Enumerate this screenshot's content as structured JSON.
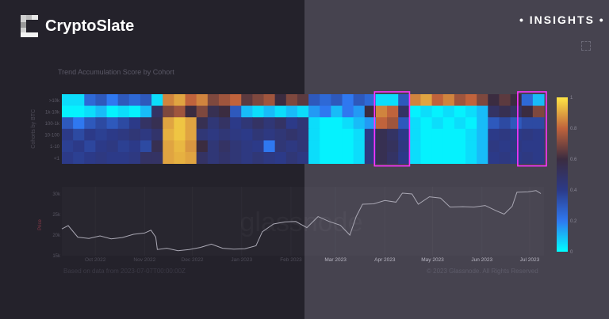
{
  "header": {
    "brand": "CryptoSlate",
    "badge": "• INSIGHTS •",
    "expand_icon": "expand-icon"
  },
  "footer": {
    "source": "Based on data from 2023-07-07T00:00:00Z",
    "copyright": "© 2023 Glassnode. All Rights Reserved"
  },
  "watermark": "glassnode",
  "chart_data": [
    {
      "type": "heatmap",
      "title": "Trend Accumulation Score by Cohort",
      "ylabel": "Cohorts by BTC",
      "rows": [
        ">10k",
        "1k-10k",
        "100-1k",
        "10-100",
        "1-10",
        "<1"
      ],
      "x_start": "2022-09-10",
      "x_end": "2023-07-10",
      "x_step": "weekly",
      "colorbar": {
        "range": [
          0,
          1
        ],
        "ticks": [
          "0",
          "0.2",
          "0.4",
          "0.6",
          "0.8",
          "1"
        ],
        "colors": [
          "#00ffff",
          "#2f78f0",
          "#2c3a88",
          "#3b2c40",
          "#c0633c",
          "#ffe545"
        ]
      },
      "highlight_color": "#ff33ff",
      "highlights": [
        [
          "2023-03-27",
          "2023-04-15"
        ],
        [
          "2023-06-25",
          "2023-07-10"
        ]
      ],
      "values": [
        [
          0.05,
          0.05,
          0.25,
          0.3,
          0.2,
          0.3,
          0.25,
          0.3,
          0.05,
          0.85,
          0.9,
          0.8,
          0.85,
          0.7,
          0.75,
          0.8,
          0.65,
          0.7,
          0.75,
          0.6,
          0.7,
          0.65,
          0.3,
          0.25,
          0.3,
          0.2,
          0.3,
          0.25,
          0.05,
          0.05,
          0.3,
          0.85,
          0.9,
          0.8,
          0.85,
          0.75,
          0.8,
          0.7,
          0.6,
          0.65,
          0.6,
          0.25,
          0.1
        ],
        [
          0.02,
          0.02,
          0.05,
          0.1,
          0.02,
          0.05,
          0.02,
          0.1,
          0.5,
          0.7,
          0.75,
          0.6,
          0.7,
          0.55,
          0.6,
          0.3,
          0.1,
          0.05,
          0.1,
          0.05,
          0.1,
          0.05,
          0.15,
          0.2,
          0.1,
          0.2,
          0.15,
          0.6,
          0.85,
          0.8,
          0.5,
          0.02,
          0.05,
          0.02,
          0.05,
          0.02,
          0.05,
          0.1,
          0.5,
          0.55,
          0.5,
          0.6,
          0.7
        ],
        [
          0.3,
          0.2,
          0.3,
          0.35,
          0.3,
          0.35,
          0.4,
          0.5,
          0.55,
          0.9,
          0.95,
          0.9,
          0.55,
          0.45,
          0.5,
          0.4,
          0.45,
          0.5,
          0.45,
          0.5,
          0.4,
          0.45,
          0.05,
          0.02,
          0.02,
          0.05,
          0.1,
          0.15,
          0.8,
          0.75,
          0.3,
          0.05,
          0.02,
          0.05,
          0.02,
          0.05,
          0.02,
          0.1,
          0.3,
          0.35,
          0.3,
          0.35,
          0.35
        ],
        [
          0.4,
          0.35,
          0.4,
          0.38,
          0.4,
          0.42,
          0.45,
          0.42,
          0.48,
          0.92,
          0.95,
          0.9,
          0.45,
          0.42,
          0.45,
          0.42,
          0.4,
          0.45,
          0.42,
          0.45,
          0.48,
          0.45,
          0.05,
          0.02,
          0.02,
          0.02,
          0.05,
          0.4,
          0.55,
          0.5,
          0.4,
          0.05,
          0.02,
          0.02,
          0.02,
          0.02,
          0.05,
          0.1,
          0.4,
          0.42,
          0.4,
          0.42,
          0.4
        ],
        [
          0.38,
          0.4,
          0.36,
          0.4,
          0.42,
          0.38,
          0.4,
          0.35,
          0.55,
          0.9,
          0.93,
          0.88,
          0.6,
          0.45,
          0.5,
          0.45,
          0.42,
          0.4,
          0.2,
          0.45,
          0.42,
          0.45,
          0.05,
          0.02,
          0.02,
          0.02,
          0.05,
          0.42,
          0.55,
          0.52,
          0.42,
          0.05,
          0.02,
          0.02,
          0.02,
          0.02,
          0.05,
          0.1,
          0.42,
          0.4,
          0.42,
          0.4,
          0.4
        ],
        [
          0.4,
          0.38,
          0.4,
          0.42,
          0.4,
          0.4,
          0.42,
          0.5,
          0.5,
          0.9,
          0.92,
          0.9,
          0.5,
          0.45,
          0.48,
          0.45,
          0.42,
          0.45,
          0.42,
          0.4,
          0.45,
          0.42,
          0.05,
          0.02,
          0.02,
          0.02,
          0.05,
          0.42,
          0.55,
          0.5,
          0.4,
          0.05,
          0.02,
          0.02,
          0.02,
          0.02,
          0.05,
          0.1,
          0.4,
          0.42,
          0.4,
          0.42,
          0.4
        ]
      ]
    },
    {
      "type": "line",
      "ylabel": "Price",
      "yticks": [
        "15k",
        "20k",
        "25k",
        "30k"
      ],
      "ylim": [
        15000,
        30000
      ],
      "xticks": [
        [
          "2022-10-01",
          "Oct 2022"
        ],
        [
          "2022-11-01",
          "Nov 2022"
        ],
        [
          "2022-12-01",
          "Dec 2022"
        ],
        [
          "2023-01-01",
          "Jan 2023"
        ],
        [
          "2023-02-01",
          "Feb 2023"
        ],
        [
          "2023-03-01",
          "Mar 2023"
        ],
        [
          "2023-04-01",
          "Apr 2023"
        ],
        [
          "2023-05-01",
          "May 2023"
        ],
        [
          "2023-06-01",
          "Jun 2023"
        ],
        [
          "2023-07-01",
          "Jul 2023"
        ]
      ],
      "line_color": "#a9a7b3",
      "points": [
        [
          "2022-09-10",
          21500
        ],
        [
          "2022-09-14",
          22300
        ],
        [
          "2022-09-20",
          19500
        ],
        [
          "2022-09-27",
          19200
        ],
        [
          "2022-10-04",
          19800
        ],
        [
          "2022-10-11",
          19100
        ],
        [
          "2022-10-18",
          19400
        ],
        [
          "2022-10-25",
          20200
        ],
        [
          "2022-11-01",
          20500
        ],
        [
          "2022-11-05",
          21200
        ],
        [
          "2022-11-08",
          19500
        ],
        [
          "2022-11-09",
          16500
        ],
        [
          "2022-11-15",
          16800
        ],
        [
          "2022-11-22",
          16200
        ],
        [
          "2022-11-29",
          16500
        ],
        [
          "2022-12-06",
          17000
        ],
        [
          "2022-12-13",
          17800
        ],
        [
          "2022-12-20",
          16800
        ],
        [
          "2022-12-27",
          16600
        ],
        [
          "2023-01-03",
          16700
        ],
        [
          "2023-01-10",
          17400
        ],
        [
          "2023-01-14",
          20800
        ],
        [
          "2023-01-21",
          22700
        ],
        [
          "2023-01-28",
          23200
        ],
        [
          "2023-02-04",
          23300
        ],
        [
          "2023-02-11",
          21800
        ],
        [
          "2023-02-18",
          24500
        ],
        [
          "2023-02-25",
          23300
        ],
        [
          "2023-03-04",
          22400
        ],
        [
          "2023-03-10",
          20000
        ],
        [
          "2023-03-14",
          24500
        ],
        [
          "2023-03-18",
          27500
        ],
        [
          "2023-03-25",
          27600
        ],
        [
          "2023-04-01",
          28400
        ],
        [
          "2023-04-08",
          28000
        ],
        [
          "2023-04-12",
          30200
        ],
        [
          "2023-04-18",
          30000
        ],
        [
          "2023-04-22",
          27500
        ],
        [
          "2023-04-29",
          29300
        ],
        [
          "2023-05-06",
          29000
        ],
        [
          "2023-05-12",
          26800
        ],
        [
          "2023-05-20",
          26900
        ],
        [
          "2023-05-27",
          26800
        ],
        [
          "2023-06-03",
          27200
        ],
        [
          "2023-06-10",
          25900
        ],
        [
          "2023-06-15",
          25100
        ],
        [
          "2023-06-20",
          27000
        ],
        [
          "2023-06-23",
          30400
        ],
        [
          "2023-06-30",
          30500
        ],
        [
          "2023-07-05",
          30800
        ],
        [
          "2023-07-08",
          30100
        ]
      ]
    }
  ]
}
